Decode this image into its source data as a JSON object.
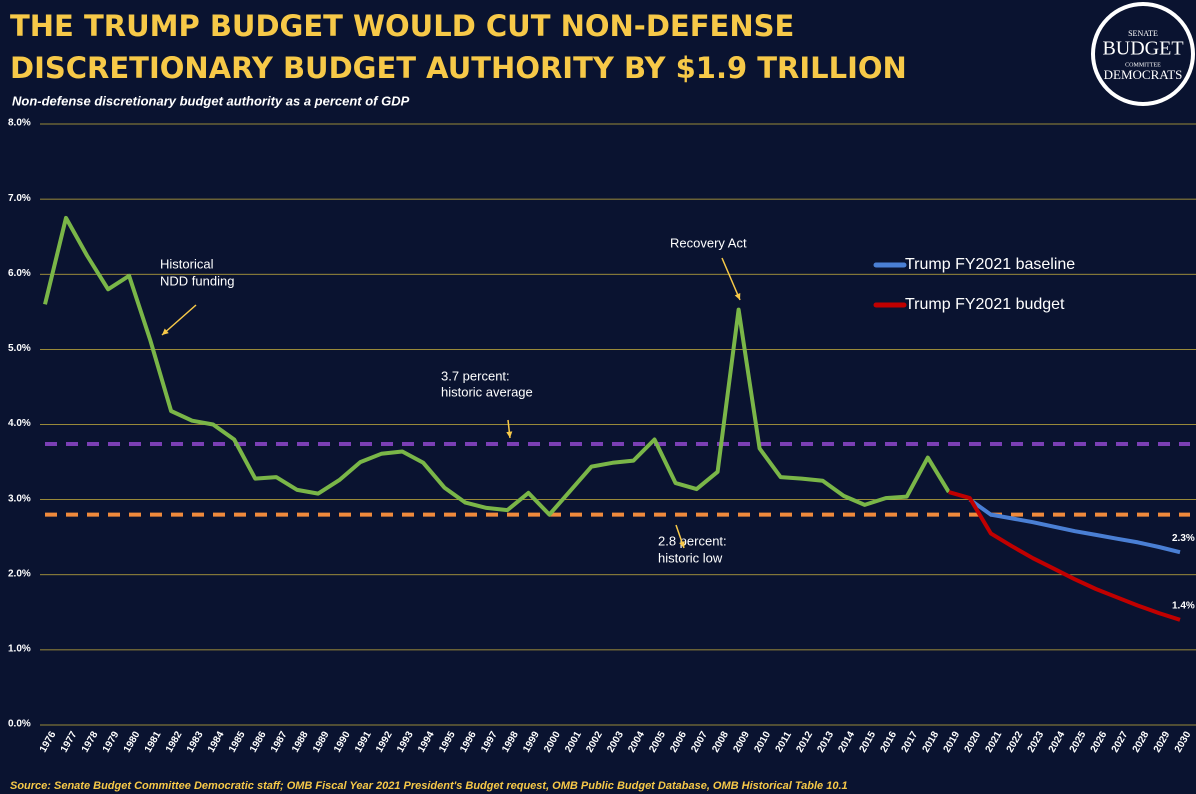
{
  "chart_data": {
    "type": "line",
    "title": [
      "THE TRUMP BUDGET WOULD CUT NON-DEFENSE",
      "DISCRETIONARY BUDGET AUTHORITY BY $1.9 TRILLION"
    ],
    "subtitle": "Non-defense discretionary budget authority as a percent of GDP",
    "source": "Source: Senate Budget Committee Democratic staff; OMB Fiscal Year 2021 President's Budget request, OMB Public Budget Database, OMB Historical Table 10.1",
    "logo": [
      "SENATE",
      "BUDGET",
      "COMMITTEE",
      "DEMOCRATS"
    ],
    "categories": [
      "1976",
      "1977",
      "1978",
      "1979",
      "1980",
      "1981",
      "1982",
      "1983",
      "1984",
      "1985",
      "1986",
      "1987",
      "1988",
      "1989",
      "1990",
      "1991",
      "1992",
      "1993",
      "1994",
      "1995",
      "1996",
      "1997",
      "1998",
      "1999",
      "2000",
      "2001",
      "2002",
      "2003",
      "2004",
      "2005",
      "2006",
      "2007",
      "2008",
      "2009",
      "2010",
      "2011",
      "2012",
      "2013",
      "2014",
      "2015",
      "2016",
      "2017",
      "2018",
      "2019",
      "2020",
      "2021",
      "2022",
      "2023",
      "2024",
      "2025",
      "2026",
      "2027",
      "2028",
      "2029",
      "2030"
    ],
    "ylim": [
      0,
      8
    ],
    "yticks": [
      {
        "value": 0,
        "label": "0.0%"
      },
      {
        "value": 1,
        "label": "1.0%"
      },
      {
        "value": 2,
        "label": "2.0%"
      },
      {
        "value": 3,
        "label": "3.0%"
      },
      {
        "value": 4,
        "label": "4.0%"
      },
      {
        "value": 5,
        "label": "5.0%"
      },
      {
        "value": 6,
        "label": "6.0%"
      },
      {
        "value": 7,
        "label": "7.0%"
      },
      {
        "value": 8,
        "label": "8.0%"
      }
    ],
    "grid": true,
    "series": [
      {
        "color": "#7ab648",
        "values": [
          5.6,
          6.75,
          6.25,
          5.8,
          5.98,
          5.13,
          4.18,
          4.05,
          4.0,
          3.8,
          3.28,
          3.3,
          3.13,
          3.08,
          3.26,
          3.5,
          3.61,
          3.64,
          3.49,
          3.16,
          2.96,
          2.89,
          2.86,
          3.09,
          2.8,
          3.12,
          3.44,
          3.49,
          3.52,
          3.8,
          3.22,
          3.14,
          3.37,
          5.53,
          3.68,
          3.3,
          3.28,
          3.25,
          3.05,
          2.93,
          3.02,
          3.04,
          3.56,
          3.1,
          null,
          null,
          null,
          null,
          null,
          null,
          null,
          null,
          null,
          null,
          null
        ]
      },
      {
        "name": "Trump FY2021 baseline",
        "color": "#4a7fd4",
        "values": [
          null,
          null,
          null,
          null,
          null,
          null,
          null,
          null,
          null,
          null,
          null,
          null,
          null,
          null,
          null,
          null,
          null,
          null,
          null,
          null,
          null,
          null,
          null,
          null,
          null,
          null,
          null,
          null,
          null,
          null,
          null,
          null,
          null,
          null,
          null,
          null,
          null,
          null,
          null,
          null,
          null,
          null,
          null,
          null,
          3.0,
          2.8,
          2.75,
          2.7,
          2.64,
          2.58,
          2.53,
          2.48,
          2.43,
          2.37,
          2.3
        ],
        "value_labels": [
          null,
          null,
          null,
          null,
          null,
          null,
          null,
          null,
          null,
          null,
          null,
          null,
          null,
          null,
          null,
          null,
          null,
          null,
          null,
          null,
          null,
          null,
          null,
          null,
          null,
          null,
          null,
          null,
          null,
          null,
          null,
          null,
          null,
          null,
          null,
          null,
          null,
          null,
          null,
          null,
          null,
          null,
          null,
          null,
          null,
          null,
          null,
          null,
          null,
          null,
          null,
          null,
          null,
          null,
          "2.3%"
        ]
      },
      {
        "name": "Trump FY2021 budget",
        "color": "#c00000",
        "values": [
          null,
          null,
          null,
          null,
          null,
          null,
          null,
          null,
          null,
          null,
          null,
          null,
          null,
          null,
          null,
          null,
          null,
          null,
          null,
          null,
          null,
          null,
          null,
          null,
          null,
          null,
          null,
          null,
          null,
          null,
          null,
          null,
          null,
          null,
          null,
          null,
          null,
          null,
          null,
          null,
          null,
          null,
          null,
          3.1,
          3.02,
          2.55,
          2.38,
          2.22,
          2.08,
          1.94,
          1.81,
          1.7,
          1.59,
          1.49,
          1.4
        ],
        "value_labels": [
          null,
          null,
          null,
          null,
          null,
          null,
          null,
          null,
          null,
          null,
          null,
          null,
          null,
          null,
          null,
          null,
          null,
          null,
          null,
          null,
          null,
          null,
          null,
          null,
          null,
          null,
          null,
          null,
          null,
          null,
          null,
          null,
          null,
          null,
          null,
          null,
          null,
          null,
          null,
          null,
          null,
          null,
          null,
          null,
          null,
          null,
          null,
          null,
          null,
          null,
          null,
          null,
          null,
          null,
          "1.4%"
        ]
      }
    ],
    "reference_lines": [
      {
        "value": 3.74,
        "color": "#7b3fb5",
        "label": [
          "3.7 percent:",
          "historic average"
        ]
      },
      {
        "value": 2.8,
        "color": "#f08a3c",
        "label": [
          "2.8 percent:",
          "historic low"
        ]
      }
    ],
    "annotations": [
      {
        "text": [
          "Historical",
          "NDD funding"
        ]
      },
      {
        "text": [
          "Recovery Act"
        ]
      }
    ]
  }
}
